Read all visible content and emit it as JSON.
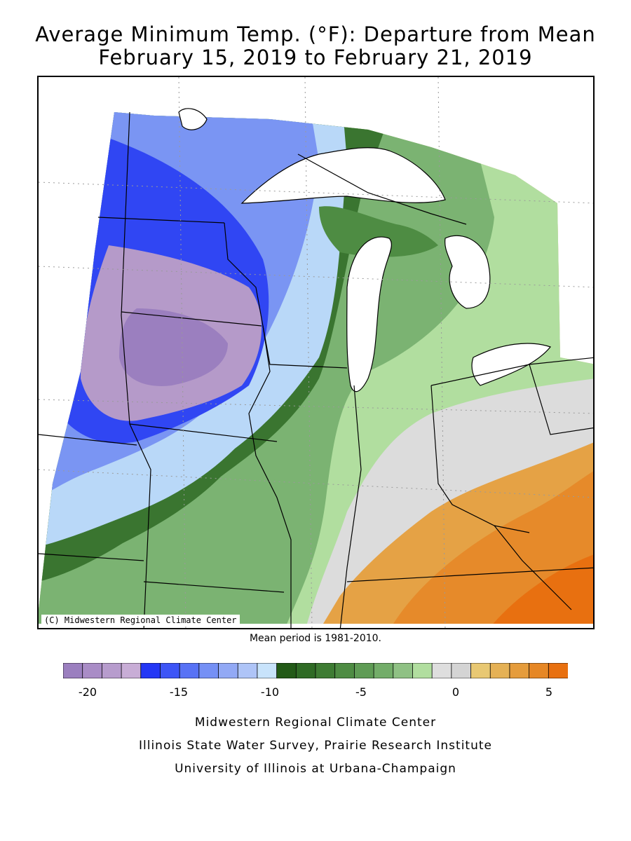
{
  "title_line1": "Average Minimum Temp. (°F): Departure from Mean",
  "title_line2": "February 15, 2019 to February 21, 2019",
  "map_credit": "(C) Midwestern Regional Climate Center",
  "mean_period": "Mean period is 1981-2010.",
  "legend": {
    "colors": [
      "#9b7fbf",
      "#a98cc6",
      "#b79ccd",
      "#c8add6",
      "#2437f5",
      "#3d55f6",
      "#5872f5",
      "#7590f5",
      "#92a9f5",
      "#aec4f7",
      "#c8e3fb",
      "#235a17",
      "#2f6b25",
      "#3e7c33",
      "#4e8c43",
      "#5f9c55",
      "#73ad69",
      "#8fc184",
      "#b1de9f",
      "#dedede",
      "#d4d4d4",
      "#e8c873",
      "#e5b155",
      "#e59c3c",
      "#e68725",
      "#e87010"
    ],
    "ticks": [
      "-20",
      "-15",
      "-10",
      "-5",
      "0",
      "5"
    ]
  },
  "footer": {
    "line1": "Midwestern Regional Climate Center",
    "line2": "Illinois State Water Survey, Prairie Research Institute",
    "line3": "University of Illinois at Urbana-Champaign"
  }
}
